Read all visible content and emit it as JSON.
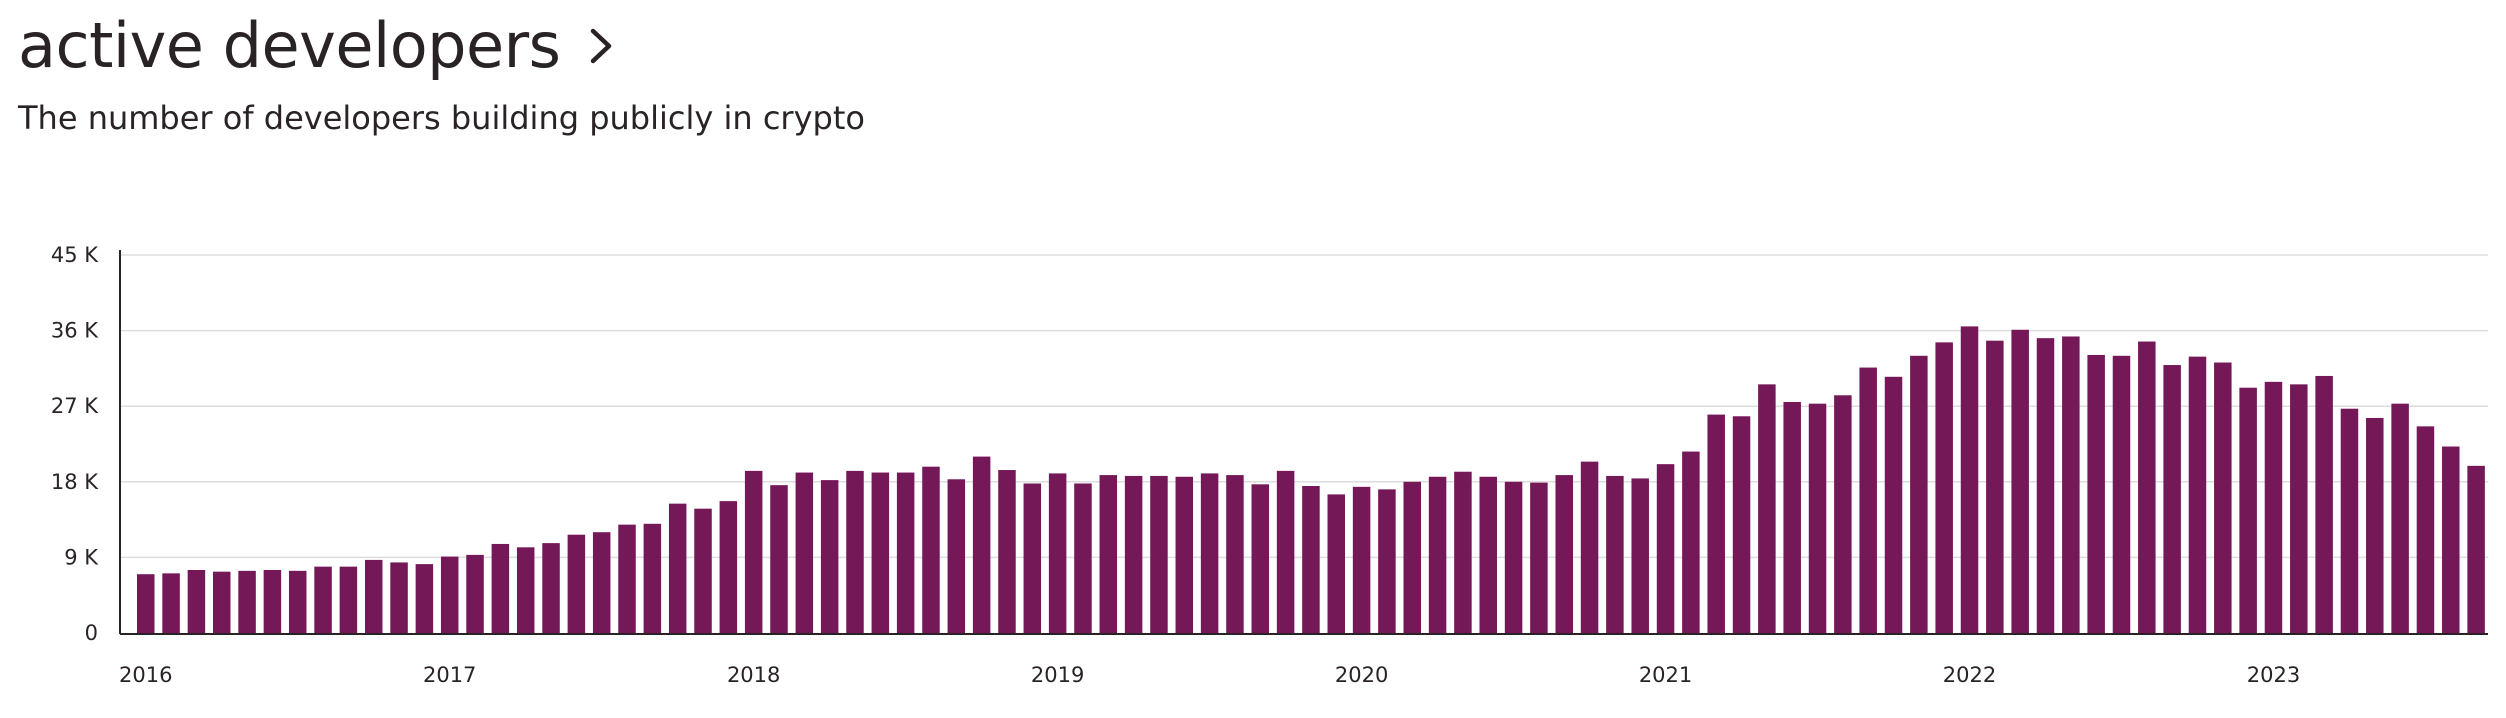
{
  "header": {
    "title": "active developers",
    "subtitle": "The number of developers building publicly in crypto"
  },
  "colors": {
    "bar": "#741858",
    "grid": "#dddddd",
    "axis": "#2a2326",
    "text": "#2a2326"
  },
  "icons": {
    "title_chevron": "chevron-right-icon"
  },
  "chart_data": {
    "type": "bar",
    "title": "active developers",
    "subtitle": "The number of developers building publicly in crypto",
    "xlabel": "",
    "ylabel": "",
    "ylim": [
      0,
      45000
    ],
    "y_ticks": [
      0,
      9000,
      18000,
      27000,
      36000,
      45000
    ],
    "y_tick_labels": [
      "0",
      "9 K",
      "18 K",
      "27 K",
      "36 K",
      "45 K"
    ],
    "x_tick_labels": [
      "2016",
      "2017",
      "2018",
      "2019",
      "2020",
      "2021",
      "2022",
      "2023"
    ],
    "grid": true,
    "legend": "none",
    "start": "2016-01",
    "values": [
      7000,
      7100,
      7500,
      7300,
      7400,
      7500,
      7400,
      7900,
      7900,
      8700,
      8400,
      8200,
      9100,
      9300,
      10600,
      10200,
      10700,
      11700,
      12000,
      12900,
      13000,
      15400,
      14800,
      15700,
      19300,
      17600,
      19100,
      18200,
      19300,
      19100,
      19100,
      19800,
      18300,
      21000,
      19400,
      17800,
      19000,
      17800,
      18800,
      18700,
      18700,
      18600,
      19000,
      18800,
      17700,
      19300,
      17500,
      16500,
      17400,
      17100,
      18000,
      18600,
      19200,
      18600,
      18000,
      17900,
      18800,
      20400,
      18700,
      18400,
      20100,
      21600,
      26000,
      25800,
      29600,
      27500,
      27300,
      28300,
      31600,
      30500,
      33000,
      34600,
      36500,
      34800,
      36100,
      35100,
      35300,
      33100,
      33000,
      34700,
      31900,
      32900,
      32200,
      29200,
      29900,
      29600,
      30600,
      26700,
      25600,
      27300,
      24600,
      22200,
      19900
    ]
  }
}
